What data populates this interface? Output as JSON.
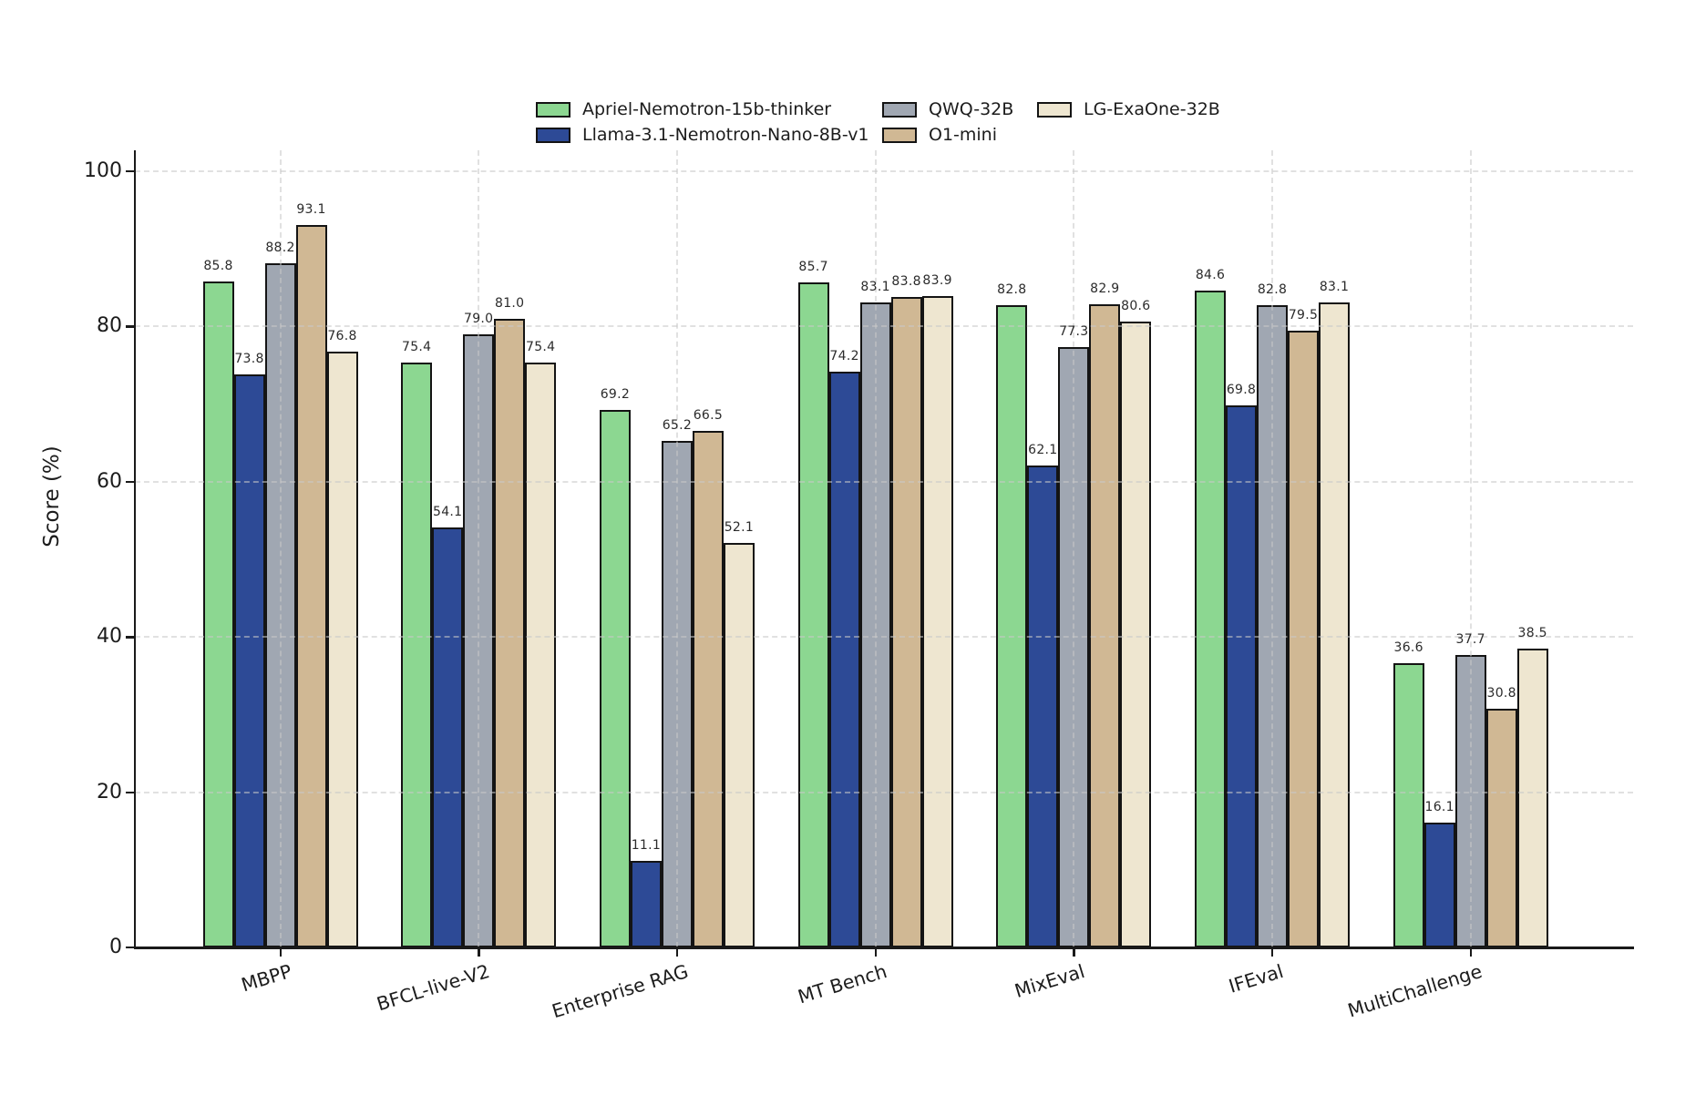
{
  "chart_data": {
    "type": "bar",
    "title": "",
    "xlabel": "",
    "ylabel": "Score (%)",
    "ylim": [
      0,
      100
    ],
    "yticks": [
      0,
      20,
      40,
      60,
      80,
      100
    ],
    "grid": "dashed light-gray horizontal and vertical gridlines drawn over bars",
    "legend_position": "top center, 3 columns, no frame",
    "value_label_decimals": 1,
    "bar_edge_color": "#141414",
    "categories": [
      "MBPP",
      "BFCL-live-V2",
      "Enterprise RAG",
      "MT Bench",
      "MixEval",
      "IFEval",
      "MultiChallenge"
    ],
    "series": [
      {
        "name": "Apriel-Nemotron-15b-thinker",
        "color": "#8cd791",
        "values": [
          85.8,
          75.4,
          69.2,
          85.7,
          82.8,
          84.6,
          36.6
        ]
      },
      {
        "name": "Llama-3.1-Nemotron-Nano-8B-v1",
        "color": "#2d4a96",
        "values": [
          73.8,
          54.1,
          11.1,
          74.2,
          62.1,
          69.8,
          16.1
        ]
      },
      {
        "name": "QWQ-32B",
        "color": "#a0a7b2",
        "values": [
          88.2,
          79.0,
          65.2,
          83.1,
          77.3,
          82.8,
          37.7
        ]
      },
      {
        "name": "O1-mini",
        "color": "#d0b894",
        "values": [
          93.1,
          81.0,
          66.5,
          83.8,
          82.9,
          79.5,
          30.8
        ]
      },
      {
        "name": "LG-ExaOne-32B",
        "color": "#eee6d0",
        "values": [
          76.8,
          75.4,
          52.1,
          83.9,
          80.6,
          83.1,
          38.5
        ]
      }
    ]
  }
}
